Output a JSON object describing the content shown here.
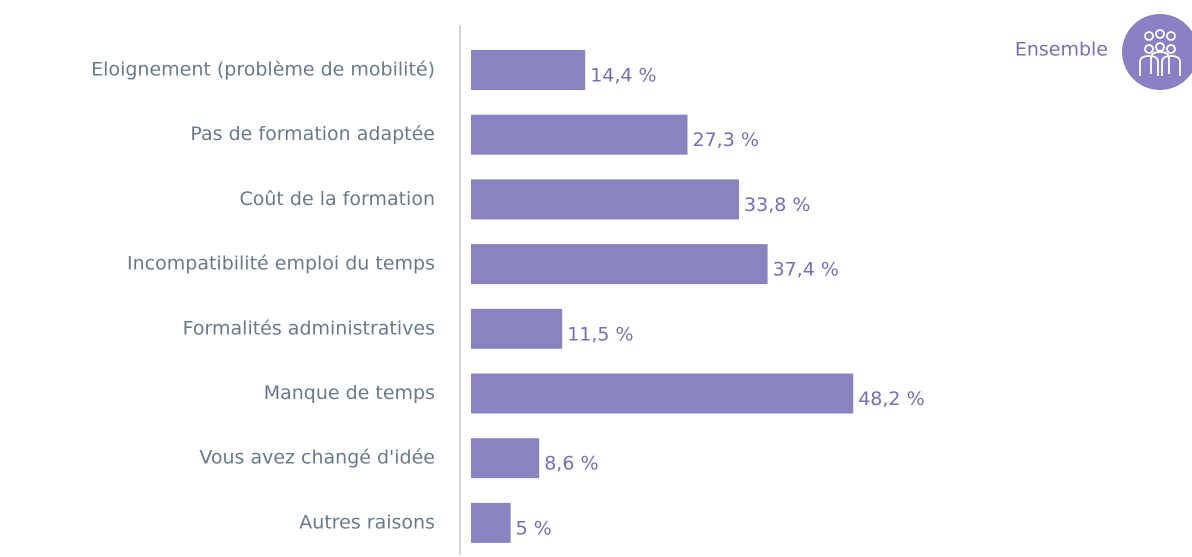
{
  "chart_data": {
    "type": "bar",
    "orientation": "horizontal",
    "categories": [
      "Eloignement (problème de mobilité)",
      "Pas de formation adaptée",
      "Coût de la formation",
      "Incompatibilité emploi du temps",
      "Formalités administratives",
      "Manque de temps",
      "Vous avez changé d'idée",
      "Autres raisons"
    ],
    "series": [
      {
        "name": "Ensemble",
        "color": "#8984c0",
        "values": [
          14.4,
          27.3,
          33.8,
          37.4,
          11.5,
          48.2,
          8.6,
          5
        ],
        "value_labels": [
          "14,4 %",
          "27,3 %",
          "33,8 %",
          "37,4 %",
          "11,5 %",
          "48,2 %",
          "8,6 %",
          "5 %"
        ]
      }
    ],
    "legend": "top-right"
  }
}
